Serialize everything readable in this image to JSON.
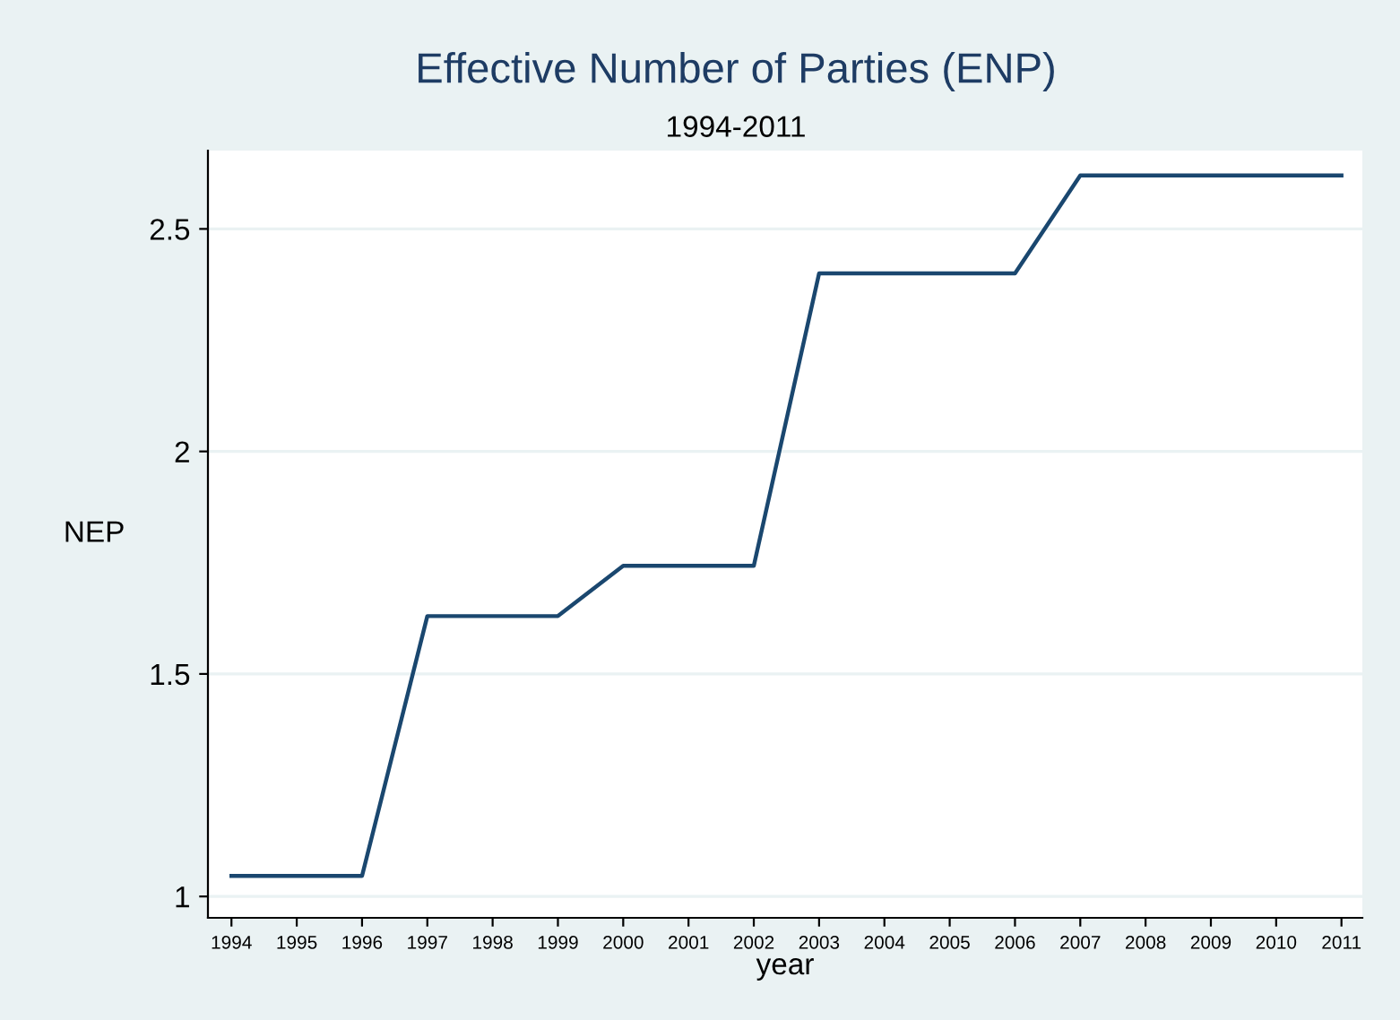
{
  "chart_data": {
    "type": "line",
    "title": "Effective Number of Parties (ENP)",
    "subtitle": "1994-2011",
    "xlabel": "year",
    "ylabel": "NEP",
    "x": [
      1994,
      1995,
      1996,
      1997,
      1998,
      1999,
      2000,
      2001,
      2002,
      2003,
      2004,
      2005,
      2006,
      2007,
      2008,
      2009,
      2010,
      2011
    ],
    "series": [
      {
        "color": "#1a476f",
        "values": [
          1.046,
          1.046,
          1.046,
          1.63,
          1.63,
          1.63,
          1.743,
          1.743,
          1.743,
          2.4,
          2.4,
          2.4,
          2.4,
          2.62,
          2.62,
          2.62,
          2.62,
          2.62
        ]
      }
    ],
    "xlim": [
      1993.64,
      2011.32
    ],
    "ylim": [
      0.952,
      2.676
    ],
    "xticks": [
      1994,
      1995,
      1996,
      1997,
      1998,
      1999,
      2000,
      2001,
      2002,
      2003,
      2004,
      2005,
      2006,
      2007,
      2008,
      2009,
      2010,
      2011
    ],
    "yticks": [
      1,
      1.5,
      2,
      2.5
    ],
    "grid": "y",
    "marker": "none",
    "line_style": "solid",
    "legend": false
  }
}
